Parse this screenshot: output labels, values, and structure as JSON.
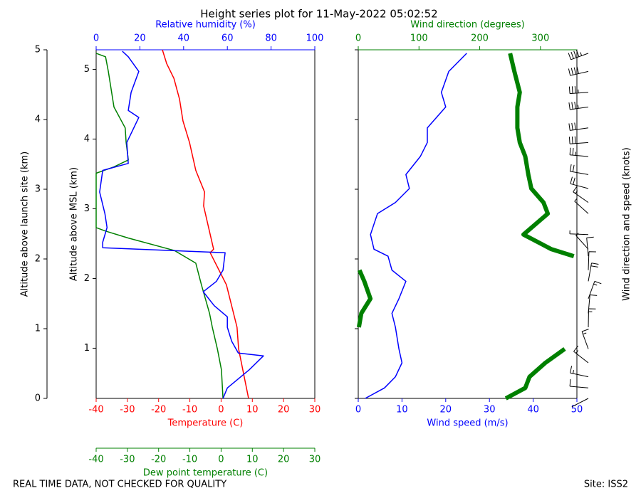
{
  "chart_data": [
    {
      "type": "profile",
      "title": "Height series plot for 11-May-2022 05:02:52",
      "y_label": "Altitude above launch site (km)",
      "ylim": [
        0,
        5
      ],
      "yticks": [
        0,
        1,
        2,
        3,
        4,
        5
      ],
      "y2_label": "Altitude above MSL (km)",
      "y2lim": [
        0.28,
        5.28
      ],
      "y2ticks": [
        1,
        2,
        3,
        4,
        5
      ],
      "axes": [
        {
          "label": "Temperature (C)",
          "color": "#ff0000",
          "position": "bottom",
          "xlim": [
            -40,
            30
          ],
          "xticks": [
            -40,
            -30,
            -20,
            -10,
            0,
            10,
            20,
            30
          ]
        },
        {
          "label": "Dew point temperature (C)",
          "color": "#008000",
          "position": "bottom2",
          "xlim": [
            -40,
            30
          ],
          "xticks": [
            -40,
            -30,
            -20,
            -10,
            0,
            10,
            20,
            30
          ]
        },
        {
          "label": "Relative humidity (%)",
          "color": "#0000ff",
          "position": "top",
          "xlim": [
            0,
            100
          ],
          "xticks": [
            0,
            20,
            40,
            60,
            80,
            100
          ]
        }
      ],
      "series": [
        {
          "axis": 0,
          "color": "#ff0000",
          "width": 1.5,
          "values": [
            8.8,
            5.6,
            5.1,
            1.7,
            -3.5,
            -2.4,
            -4,
            -5.6,
            -5.3,
            -8.1,
            -10.1,
            -12.2,
            -13.3,
            -15.1,
            -17.4,
            -18.8
          ],
          "altitudes": [
            0,
            0.71,
            1.02,
            1.63,
            2.09,
            2.14,
            2.45,
            2.76,
            2.96,
            3.27,
            3.67,
            3.98,
            4.29,
            4.59,
            4.8,
            5.0
          ]
        },
        {
          "axis": 1,
          "color": "#008000",
          "width": 1.5,
          "values": [
            0.6,
            0.1,
            -1.2,
            -2.8,
            -3.7,
            -6.3,
            -8.1,
            -14.9,
            -29.7,
            -37,
            -40,
            -40,
            -34.3,
            -29.7,
            -30.4,
            -30.7,
            -34.3,
            -36.1,
            -37,
            -40
          ],
          "altitudes": [
            0,
            0.41,
            0.71,
            1.02,
            1.22,
            1.63,
            1.94,
            2.12,
            2.3,
            2.4,
            2.45,
            3.23,
            3.32,
            3.42,
            3.67,
            3.88,
            4.18,
            4.69,
            4.9,
            4.95
          ]
        },
        {
          "axis": 2,
          "color": "#0000ff",
          "width": 1.5,
          "values": [
            58,
            60,
            70,
            76.5,
            65,
            62,
            60,
            60,
            54,
            49,
            55,
            58,
            59,
            3,
            3,
            5,
            4,
            1.6,
            3,
            14.7,
            14,
            19.5,
            14.7,
            16,
            19.5,
            14.7,
            12
          ],
          "altitudes": [
            0,
            0.15,
            0.41,
            0.61,
            0.65,
            0.82,
            1.02,
            1.17,
            1.33,
            1.53,
            1.68,
            1.84,
            2.09,
            2.16,
            2.24,
            2.45,
            2.65,
            2.96,
            3.27,
            3.37,
            3.67,
            4.03,
            4.13,
            4.39,
            4.69,
            4.9,
            4.98
          ]
        }
      ]
    },
    {
      "type": "profile",
      "y_label": "Wind direction and speed (knots)",
      "ylim": [
        0,
        5
      ],
      "yticks": [
        0,
        1,
        2,
        3,
        4,
        5
      ],
      "barbs": true,
      "axes": [
        {
          "label": "Wind speed (m/s)",
          "color": "#0000ff",
          "position": "bottom",
          "xlim": [
            0,
            50
          ],
          "xticks": [
            0,
            10,
            20,
            30,
            40,
            50
          ]
        },
        {
          "label": "Wind direction (degrees)",
          "color": "#008000",
          "position": "top",
          "xlim": [
            0,
            360
          ],
          "xticks": [
            0,
            100,
            200,
            300
          ]
        }
      ],
      "series": [
        {
          "axis": 0,
          "color": "#0000ff",
          "width": 1.5,
          "values": [
            1.6,
            6,
            8.5,
            10,
            9.3,
            8.5,
            7.7,
            9.3,
            10.9,
            7.7,
            6.8,
            3.6,
            2.8,
            4.4,
            8.5,
            11.7,
            10.9,
            14.2,
            15.8,
            15.8,
            20,
            19,
            20.7,
            24.8
          ],
          "altitudes": [
            0,
            0.15,
            0.31,
            0.51,
            0.71,
            1.02,
            1.22,
            1.43,
            1.68,
            1.84,
            2.04,
            2.14,
            2.35,
            2.65,
            2.81,
            3.01,
            3.21,
            3.47,
            3.67,
            3.88,
            4.18,
            4.39,
            4.69,
            4.95
          ]
        },
        {
          "axis": 1,
          "color": "#008000",
          "width": 6,
          "values": [
            243,
            275,
            282,
            308,
            340,
            1,
            5,
            20,
            10,
            2,
            355,
            318,
            272,
            312,
            305,
            285,
            280,
            275,
            266,
            262,
            262,
            266,
            257,
            250
          ],
          "altitudes": [
            0,
            0.15,
            0.31,
            0.51,
            0.71,
            1.02,
            1.22,
            1.43,
            1.68,
            1.84,
            2.04,
            2.14,
            2.35,
            2.65,
            2.81,
            3.01,
            3.21,
            3.47,
            3.67,
            3.88,
            4.18,
            4.39,
            4.69,
            4.95
          ]
        }
      ]
    }
  ],
  "footer": {
    "left": "REAL TIME DATA, NOT CHECKED FOR QUALITY",
    "right": "Site: ISS2"
  }
}
